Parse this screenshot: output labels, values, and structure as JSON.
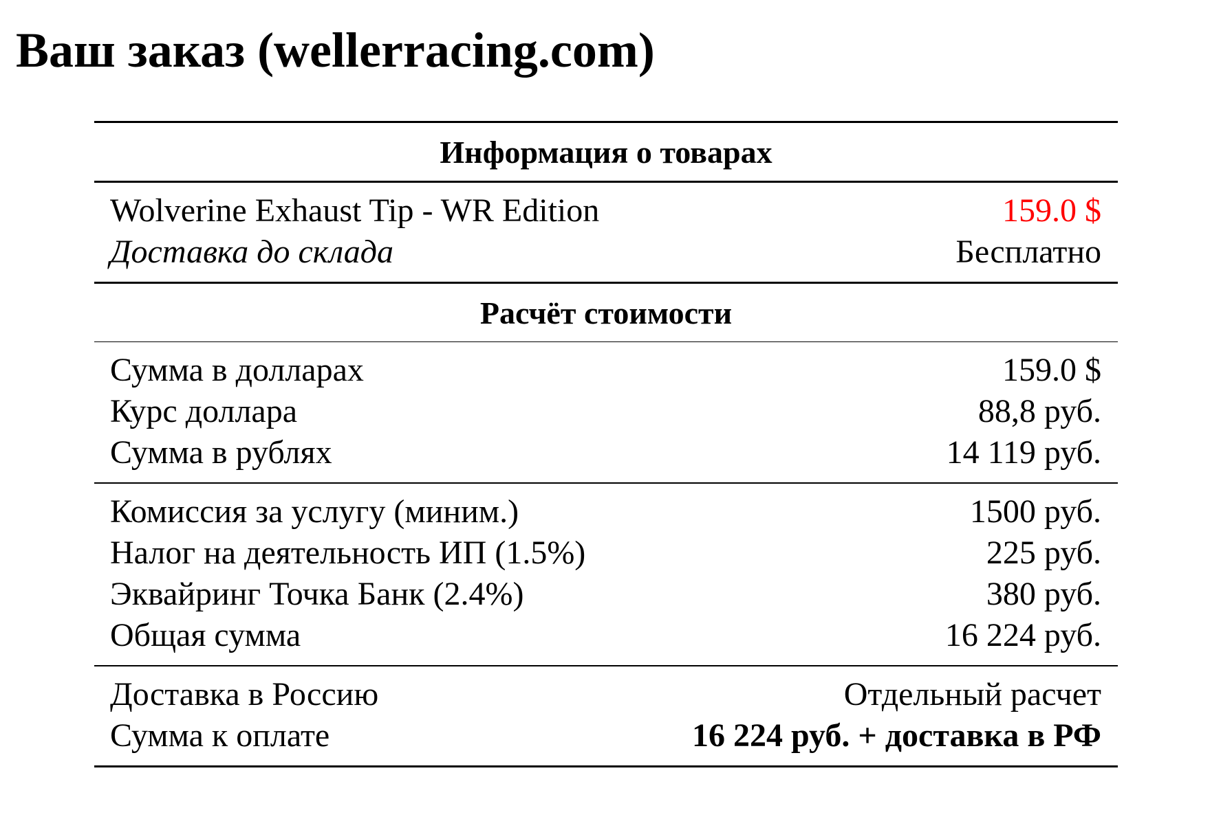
{
  "title": "Ваш заказ (wellerracing.com)",
  "colors": {
    "price_highlight": "#ff0000",
    "text": "#000000"
  },
  "product_section": {
    "heading": "Информация о товарах",
    "rows": [
      {
        "label": "Wolverine Exhaust Tip - WR Edition",
        "value": "159.0 $"
      },
      {
        "label": "Доставка до склада",
        "value": "Бесплатно"
      }
    ]
  },
  "cost_section": {
    "heading": "Расчёт стоимости",
    "conversion": [
      {
        "label": "Сумма в долларах",
        "value": "159.0 $"
      },
      {
        "label": "Курс доллара",
        "value": "88,8 руб."
      },
      {
        "label": "Сумма в рублях",
        "value": "14 119 руб."
      }
    ],
    "fees": [
      {
        "label": "Комиссия за услугу (миним.)",
        "value": "1500 руб."
      },
      {
        "label": "Налог на деятельность ИП (1.5%)",
        "value": "225 руб."
      },
      {
        "label": "Эквайринг Точка Банк (2.4%)",
        "value": "380 руб."
      },
      {
        "label": "Общая сумма",
        "value": "16 224 руб."
      }
    ],
    "final": [
      {
        "label": "Доставка в Россию",
        "value": "Отдельный расчет"
      },
      {
        "label": "Сумма к оплате",
        "value": "16 224 руб. + доставка в РФ"
      }
    ]
  }
}
